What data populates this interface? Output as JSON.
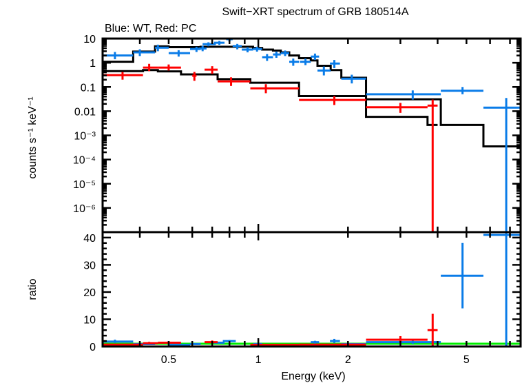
{
  "chart_data": {
    "type": "scatter",
    "title": "Swift−XRT spectrum of GRB 180514A",
    "subtitle": "Blue: WT, Red: PC",
    "xlabel": "Energy (keV)",
    "xscale": "log",
    "xlim": [
      0.3,
      7.6
    ],
    "x_ticklabels": [
      {
        "v": 0.5,
        "label": "0.5"
      },
      {
        "v": 1,
        "label": "1"
      },
      {
        "v": 2,
        "label": "2"
      },
      {
        "v": 5,
        "label": "5"
      }
    ],
    "panels": [
      {
        "name": "spectrum",
        "ylabel": "counts s⁻¹ keV⁻¹",
        "yscale": "log",
        "ylim": [
          1e-07,
          10
        ],
        "y_ticklabels": [
          {
            "v": 10,
            "label": "10"
          },
          {
            "v": 1,
            "label": "1"
          },
          {
            "v": 0.1,
            "label": "0.1"
          },
          {
            "v": 0.01,
            "label": "0.01"
          },
          {
            "v": 0.001,
            "label": "10⁻³"
          },
          {
            "v": 0.0001,
            "label": "10⁻⁴"
          },
          {
            "v": 1e-05,
            "label": "10⁻⁵"
          },
          {
            "v": 1e-06,
            "label": "10⁻⁶"
          }
        ],
        "series": [
          {
            "name": "WT data",
            "color": "#0a7ce8",
            "points": [
              {
                "x": 0.33,
                "xlo": 0.3,
                "xhi": 0.38,
                "y": 2.0,
                "ylo": 1.4,
                "yhi": 2.8
              },
              {
                "x": 0.4,
                "xlo": 0.38,
                "xhi": 0.45,
                "y": 2.7,
                "ylo": 1.9,
                "yhi": 3.6
              },
              {
                "x": 0.46,
                "xlo": 0.45,
                "xhi": 0.5,
                "y": 4.2,
                "ylo": 3.0,
                "yhi": 5.6
              },
              {
                "x": 0.54,
                "xlo": 0.5,
                "xhi": 0.59,
                "y": 2.5,
                "ylo": 1.8,
                "yhi": 3.3
              },
              {
                "x": 0.62,
                "xlo": 0.59,
                "xhi": 0.64,
                "y": 3.7,
                "ylo": 2.8,
                "yhi": 4.6
              },
              {
                "x": 0.65,
                "xlo": 0.63,
                "xhi": 0.67,
                "y": 3.9,
                "ylo": 3.0,
                "yhi": 5.0
              },
              {
                "x": 0.68,
                "xlo": 0.65,
                "xhi": 0.72,
                "y": 5.9,
                "ylo": 4.8,
                "yhi": 7.0
              },
              {
                "x": 0.74,
                "xlo": 0.71,
                "xhi": 0.77,
                "y": 6.7,
                "ylo": 5.5,
                "yhi": 8.0
              },
              {
                "x": 0.8,
                "xlo": 0.78,
                "xhi": 0.82,
                "y": 9.4,
                "ylo": 7.5,
                "yhi": 11.0
              },
              {
                "x": 0.85,
                "xlo": 0.82,
                "xhi": 0.88,
                "y": 4.9,
                "ylo": 3.6,
                "yhi": 6.0
              },
              {
                "x": 0.92,
                "xlo": 0.88,
                "xhi": 0.96,
                "y": 3.5,
                "ylo": 2.7,
                "yhi": 4.4
              },
              {
                "x": 0.99,
                "xlo": 0.96,
                "xhi": 1.03,
                "y": 3.7,
                "ylo": 2.9,
                "yhi": 4.6
              },
              {
                "x": 1.07,
                "xlo": 1.03,
                "xhi": 1.12,
                "y": 1.7,
                "ylo": 1.2,
                "yhi": 2.3
              },
              {
                "x": 1.15,
                "xlo": 1.12,
                "xhi": 1.19,
                "y": 2.2,
                "ylo": 1.6,
                "yhi": 2.9
              },
              {
                "x": 1.23,
                "xlo": 1.19,
                "xhi": 1.27,
                "y": 2.5,
                "ylo": 1.9,
                "yhi": 3.2
              },
              {
                "x": 1.31,
                "xlo": 1.27,
                "xhi": 1.37,
                "y": 1.1,
                "ylo": 0.75,
                "yhi": 1.5
              },
              {
                "x": 1.44,
                "xlo": 1.38,
                "xhi": 1.5,
                "y": 1.1,
                "ylo": 0.8,
                "yhi": 1.5
              },
              {
                "x": 1.55,
                "xlo": 1.5,
                "xhi": 1.6,
                "y": 1.8,
                "ylo": 1.3,
                "yhi": 2.4
              },
              {
                "x": 1.66,
                "xlo": 1.58,
                "xhi": 1.75,
                "y": 0.48,
                "ylo": 0.3,
                "yhi": 0.7
              },
              {
                "x": 1.8,
                "xlo": 1.74,
                "xhi": 1.88,
                "y": 0.93,
                "ylo": 0.6,
                "yhi": 1.3
              },
              {
                "x": 2.06,
                "xlo": 1.9,
                "xhi": 2.3,
                "y": 0.22,
                "ylo": 0.14,
                "yhi": 0.32
              },
              {
                "x": 3.3,
                "xlo": 2.3,
                "xhi": 4.1,
                "y": 0.05,
                "ylo": 0.03,
                "yhi": 0.072
              },
              {
                "x": 4.85,
                "xlo": 4.1,
                "xhi": 5.7,
                "y": 0.07,
                "ylo": 0.05,
                "yhi": 0.1
              },
              {
                "x": 6.8,
                "xlo": 5.7,
                "xhi": 7.6,
                "y": 0.014,
                "ylo": 1e-07,
                "yhi": 0.035
              }
            ]
          },
          {
            "name": "PC data",
            "color": "#ff0000",
            "points": [
              {
                "x": 0.35,
                "xlo": 0.3,
                "xhi": 0.41,
                "y": 0.31,
                "ylo": 0.2,
                "yhi": 0.42
              },
              {
                "x": 0.43,
                "xlo": 0.41,
                "xhi": 0.46,
                "y": 0.63,
                "ylo": 0.45,
                "yhi": 0.9
              },
              {
                "x": 0.5,
                "xlo": 0.46,
                "xhi": 0.55,
                "y": 0.63,
                "ylo": 0.48,
                "yhi": 0.85
              },
              {
                "x": 0.61,
                "xlo": 0.6,
                "xhi": 0.62,
                "y": 0.29,
                "ylo": 0.18,
                "yhi": 0.42
              },
              {
                "x": 0.7,
                "xlo": 0.66,
                "xhi": 0.73,
                "y": 0.52,
                "ylo": 0.35,
                "yhi": 0.72
              },
              {
                "x": 0.81,
                "xlo": 0.73,
                "xhi": 0.94,
                "y": 0.17,
                "ylo": 0.11,
                "yhi": 0.25
              },
              {
                "x": 1.06,
                "xlo": 0.94,
                "xhi": 1.37,
                "y": 0.088,
                "ylo": 0.055,
                "yhi": 0.13
              },
              {
                "x": 1.8,
                "xlo": 1.37,
                "xhi": 2.3,
                "y": 0.029,
                "ylo": 0.018,
                "yhi": 0.042
              },
              {
                "x": 3.0,
                "xlo": 2.3,
                "xhi": 3.7,
                "y": 0.0145,
                "ylo": 0.0085,
                "yhi": 0.022
              },
              {
                "x": 3.85,
                "xlo": 3.7,
                "xhi": 4.0,
                "y": 0.017,
                "ylo": 1e-07,
                "yhi": 0.03
              }
            ]
          }
        ],
        "models": [
          {
            "name": "WT model",
            "color": "#000000",
            "steps": [
              {
                "xlo": 0.3,
                "xhi": 0.38,
                "y": 1.1
              },
              {
                "xlo": 0.38,
                "xhi": 0.45,
                "y": 2.9
              },
              {
                "xlo": 0.45,
                "xhi": 0.5,
                "y": 4.8
              },
              {
                "xlo": 0.5,
                "xhi": 0.64,
                "y": 4.4
              },
              {
                "xlo": 0.64,
                "xhi": 0.82,
                "y": 4.6
              },
              {
                "xlo": 0.82,
                "xhi": 0.96,
                "y": 4.6
              },
              {
                "xlo": 0.96,
                "xhi": 1.03,
                "y": 4.1
              },
              {
                "xlo": 1.03,
                "xhi": 1.12,
                "y": 3.5
              },
              {
                "xlo": 1.12,
                "xhi": 1.19,
                "y": 3.2
              },
              {
                "xlo": 1.19,
                "xhi": 1.27,
                "y": 2.7
              },
              {
                "xlo": 1.27,
                "xhi": 1.37,
                "y": 2.0
              },
              {
                "xlo": 1.37,
                "xhi": 1.5,
                "y": 1.55
              },
              {
                "xlo": 1.5,
                "xhi": 1.58,
                "y": 1.25
              },
              {
                "xlo": 1.58,
                "xhi": 1.75,
                "y": 0.75
              },
              {
                "xlo": 1.75,
                "xhi": 1.9,
                "y": 0.5
              },
              {
                "xlo": 1.9,
                "xhi": 2.3,
                "y": 0.24
              },
              {
                "xlo": 2.3,
                "xhi": 4.1,
                "y": 0.031
              },
              {
                "xlo": 4.1,
                "xhi": 5.7,
                "y": 0.0027
              },
              {
                "xlo": 5.7,
                "xhi": 7.6,
                "y": 0.00035
              }
            ]
          },
          {
            "name": "PC model",
            "color": "#000000",
            "steps": [
              {
                "xlo": 0.3,
                "xhi": 0.41,
                "y": 0.45
              },
              {
                "xlo": 0.41,
                "xhi": 0.46,
                "y": 0.5
              },
              {
                "xlo": 0.46,
                "xhi": 0.55,
                "y": 0.44
              },
              {
                "xlo": 0.55,
                "xhi": 0.73,
                "y": 0.33
              },
              {
                "xlo": 0.73,
                "xhi": 0.94,
                "y": 0.21
              },
              {
                "xlo": 0.94,
                "xhi": 1.37,
                "y": 0.15
              },
              {
                "xlo": 1.37,
                "xhi": 2.3,
                "y": 0.042
              },
              {
                "xlo": 2.3,
                "xhi": 3.7,
                "y": 0.0058
              },
              {
                "xlo": 3.7,
                "xhi": 4.0,
                "y": 0.0027
              }
            ]
          }
        ]
      },
      {
        "name": "ratio",
        "ylabel": "ratio",
        "yscale": "linear",
        "ylim": [
          0,
          42
        ],
        "y_ticklabels": [
          {
            "v": 0,
            "label": "0"
          },
          {
            "v": 10,
            "label": "10"
          },
          {
            "v": 20,
            "label": "20"
          },
          {
            "v": 30,
            "label": "30"
          },
          {
            "v": 40,
            "label": "40"
          }
        ],
        "reference_line": {
          "y": 1,
          "color": "#00ee00"
        },
        "series": [
          {
            "name": "WT ratio",
            "color": "#0a7ce8",
            "points": [
              {
                "x": 0.33,
                "xlo": 0.3,
                "xhi": 0.38,
                "y": 1.8,
                "ylo": 1.3,
                "yhi": 2.5
              },
              {
                "x": 0.4,
                "xlo": 0.38,
                "xhi": 0.45,
                "y": 0.9,
                "ylo": 0.6,
                "yhi": 1.3
              },
              {
                "x": 0.54,
                "xlo": 0.5,
                "xhi": 0.59,
                "y": 0.6,
                "ylo": 0.4,
                "yhi": 0.8
              },
              {
                "x": 0.62,
                "xlo": 0.59,
                "xhi": 0.64,
                "y": 0.9,
                "ylo": 0.6,
                "yhi": 1.1
              },
              {
                "x": 0.74,
                "xlo": 0.71,
                "xhi": 0.77,
                "y": 1.4,
                "ylo": 1.2,
                "yhi": 1.7
              },
              {
                "x": 0.8,
                "xlo": 0.76,
                "xhi": 0.84,
                "y": 2.0,
                "ylo": 1.6,
                "yhi": 2.4
              },
              {
                "x": 0.99,
                "xlo": 0.96,
                "xhi": 1.03,
                "y": 0.9,
                "ylo": 0.7,
                "yhi": 1.1
              },
              {
                "x": 1.31,
                "xlo": 1.27,
                "xhi": 1.37,
                "y": 0.55,
                "ylo": 0.4,
                "yhi": 0.7
              },
              {
                "x": 1.55,
                "xlo": 1.5,
                "xhi": 1.6,
                "y": 1.6,
                "ylo": 1.1,
                "yhi": 2.1
              },
              {
                "x": 1.8,
                "xlo": 1.74,
                "xhi": 1.88,
                "y": 2.0,
                "ylo": 1.3,
                "yhi": 2.8
              },
              {
                "x": 2.06,
                "xlo": 1.9,
                "xhi": 2.3,
                "y": 0.9,
                "ylo": 0.6,
                "yhi": 1.3
              },
              {
                "x": 3.3,
                "xlo": 2.3,
                "xhi": 4.1,
                "y": 1.6,
                "ylo": 1.0,
                "yhi": 2.3
              },
              {
                "x": 4.85,
                "xlo": 4.1,
                "xhi": 5.7,
                "y": 26,
                "ylo": 14,
                "yhi": 38
              },
              {
                "x": 6.8,
                "xlo": 5.7,
                "xhi": 7.6,
                "y": 41,
                "ylo": 0,
                "yhi": 42
              }
            ]
          },
          {
            "name": "PC ratio",
            "color": "#ff0000",
            "points": [
              {
                "x": 0.35,
                "xlo": 0.3,
                "xhi": 0.41,
                "y": 0.7,
                "ylo": 0.4,
                "yhi": 0.9
              },
              {
                "x": 0.43,
                "xlo": 0.41,
                "xhi": 0.46,
                "y": 1.2,
                "ylo": 0.9,
                "yhi": 1.7
              },
              {
                "x": 0.5,
                "xlo": 0.46,
                "xhi": 0.55,
                "y": 1.4,
                "ylo": 1.1,
                "yhi": 1.9
              },
              {
                "x": 0.7,
                "xlo": 0.66,
                "xhi": 0.73,
                "y": 1.6,
                "ylo": 1.1,
                "yhi": 2.2
              },
              {
                "x": 1.06,
                "xlo": 0.94,
                "xhi": 1.37,
                "y": 0.6,
                "ylo": 0.35,
                "yhi": 0.85
              },
              {
                "x": 1.8,
                "xlo": 1.37,
                "xhi": 2.3,
                "y": 0.7,
                "ylo": 0.45,
                "yhi": 1.0
              },
              {
                "x": 3.0,
                "xlo": 2.3,
                "xhi": 3.7,
                "y": 2.5,
                "ylo": 1.5,
                "yhi": 3.8
              },
              {
                "x": 3.85,
                "xlo": 3.7,
                "xhi": 4.0,
                "y": 6.0,
                "ylo": 0,
                "yhi": 12.0
              }
            ]
          }
        ]
      }
    ]
  }
}
